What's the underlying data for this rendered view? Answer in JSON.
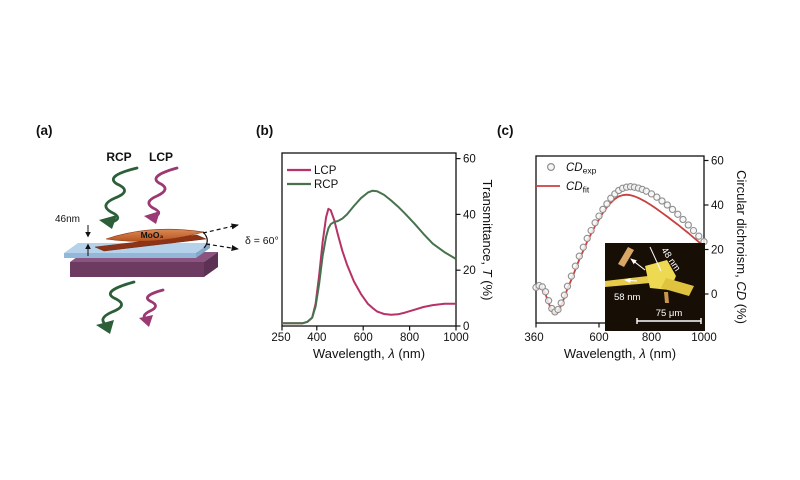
{
  "panel_a": {
    "label": "(a)",
    "rcp_label": "RCP",
    "lcp_label": "LCP",
    "thickness_label": "46nm",
    "material_label": "MoO₃",
    "angle_label": "δ = 60°",
    "colors": {
      "rcp_spiral": "#2c5f38",
      "lcp_spiral": "#9a3973",
      "slab_top": "#cf7a45",
      "slab_dark": "#8e3315",
      "glass_top": "#b6d2eb",
      "substrate_front": "#6d3b62"
    }
  },
  "panel_b": {
    "label": "(b)",
    "legend": [
      {
        "label": "LCP"
      },
      {
        "label": "RCP"
      }
    ],
    "xticks": [
      "250",
      "400",
      "600",
      "800",
      "1000"
    ],
    "yticks": [
      "0",
      "20",
      "40",
      "60"
    ],
    "xlabel": {
      "prefix": "Wavelength, ",
      "symbol": "λ",
      "suffix": " (nm)"
    },
    "ylabel": {
      "prefix": "Transmittance, ",
      "symbol": "T",
      "suffix": " (%)"
    }
  },
  "panel_c": {
    "label": "(c)",
    "legend_exp": {
      "symbol": "CD",
      "sub": "exp"
    },
    "legend_fit": {
      "symbol": "CD",
      "sub": "fit"
    },
    "xticks": [
      "360",
      "600",
      "800",
      "1000"
    ],
    "yticks": [
      "0",
      "20",
      "40",
      "60"
    ],
    "xlabel": {
      "prefix": "Wavelength, ",
      "symbol": "λ",
      "suffix": " (nm)"
    },
    "ylabel": {
      "prefix": "Circular dichroism, ",
      "symbol": "CD",
      "suffix": " (%)"
    },
    "inset": {
      "label_48": "48 nm",
      "label_58": "58 nm",
      "scalebar": "75 μm"
    }
  },
  "chart_data": [
    {
      "id": "b",
      "type": "line",
      "title": "",
      "xlabel": "Wavelength, λ (nm)",
      "ylabel": "Transmittance, T (%)",
      "xlim": [
        250,
        1000
      ],
      "ylim": [
        0,
        62
      ],
      "xticks": [
        250,
        400,
        600,
        800,
        1000
      ],
      "yticks": [
        0,
        20,
        40,
        60
      ],
      "grid": false,
      "legend_position": "top-left",
      "x": [
        250,
        280,
        310,
        340,
        360,
        380,
        395,
        410,
        425,
        440,
        450,
        460,
        475,
        490,
        510,
        530,
        560,
        590,
        620,
        640,
        660,
        690,
        720,
        750,
        780,
        820,
        860,
        900,
        950,
        1000
      ],
      "series": [
        {
          "name": "LCP",
          "color": "#b63268",
          "values": [
            1,
            1,
            1,
            1,
            1.5,
            3,
            8,
            18,
            30,
            39,
            42,
            41.5,
            38,
            33,
            27,
            22,
            16,
            11.5,
            8,
            6.5,
            5.2,
            4.3,
            4,
            4.2,
            4.8,
            5.8,
            6.8,
            7.5,
            8,
            8
          ]
        },
        {
          "name": "RCP",
          "color": "#47724d",
          "values": [
            1,
            1,
            1,
            1,
            1.5,
            3,
            7,
            15,
            25,
            32,
            35,
            36.5,
            37.3,
            37.6,
            38.5,
            40,
            43,
            45.8,
            47.8,
            48.5,
            48.3,
            47,
            45,
            42.8,
            40.3,
            36.8,
            33,
            29.5,
            26.5,
            24
          ]
        }
      ]
    },
    {
      "id": "c",
      "type": "line+scatter",
      "title": "",
      "xlabel": "Wavelength, λ (nm)",
      "ylabel": "Circular dichroism, CD (%)",
      "xlim": [
        360,
        1000
      ],
      "ylim": [
        -13,
        62
      ],
      "xticks": [
        360,
        600,
        800,
        1000
      ],
      "yticks": [
        0,
        20,
        40,
        60
      ],
      "grid": false,
      "legend_position": "top-left",
      "x": [
        360,
        372,
        384,
        396,
        408,
        420,
        432,
        444,
        456,
        468,
        480,
        495,
        510,
        525,
        540,
        555,
        570,
        585,
        600,
        615,
        630,
        645,
        660,
        675,
        690,
        705,
        720,
        735,
        750,
        765,
        780,
        800,
        820,
        840,
        860,
        880,
        900,
        920,
        940,
        960,
        980,
        1000
      ],
      "series": [
        {
          "name": "CD_fit",
          "color": "#c94040",
          "values": [
            2.5,
            3.2,
            2.5,
            0,
            -4,
            -7.5,
            -9,
            -8,
            -5,
            -1.5,
            2.5,
            6.5,
            11,
            15.5,
            19.5,
            23.5,
            27,
            30.5,
            33.5,
            36.5,
            39,
            41,
            42.7,
            43.8,
            44.4,
            44.6,
            44.4,
            43.9,
            43.2,
            42.3,
            41.3,
            39.8,
            38.2,
            36.5,
            34.8,
            33,
            31.2,
            29.3,
            27.4,
            25.4,
            23.4,
            21.3
          ]
        }
      ],
      "scatter": {
        "name": "CD_exp",
        "color": "#8f8f8f",
        "values": [
          3,
          3.8,
          3.2,
          1,
          -3,
          -6.5,
          -8,
          -7,
          -4,
          -0.5,
          3.5,
          8,
          12.5,
          17,
          21,
          25,
          28.5,
          32,
          35,
          38,
          40.5,
          43,
          45,
          46.5,
          47.5,
          48,
          48.2,
          48,
          47.6,
          47,
          46.2,
          45,
          43.5,
          41.8,
          40,
          38,
          35.8,
          33.5,
          31,
          28.5,
          26,
          23.5
        ]
      }
    }
  ]
}
